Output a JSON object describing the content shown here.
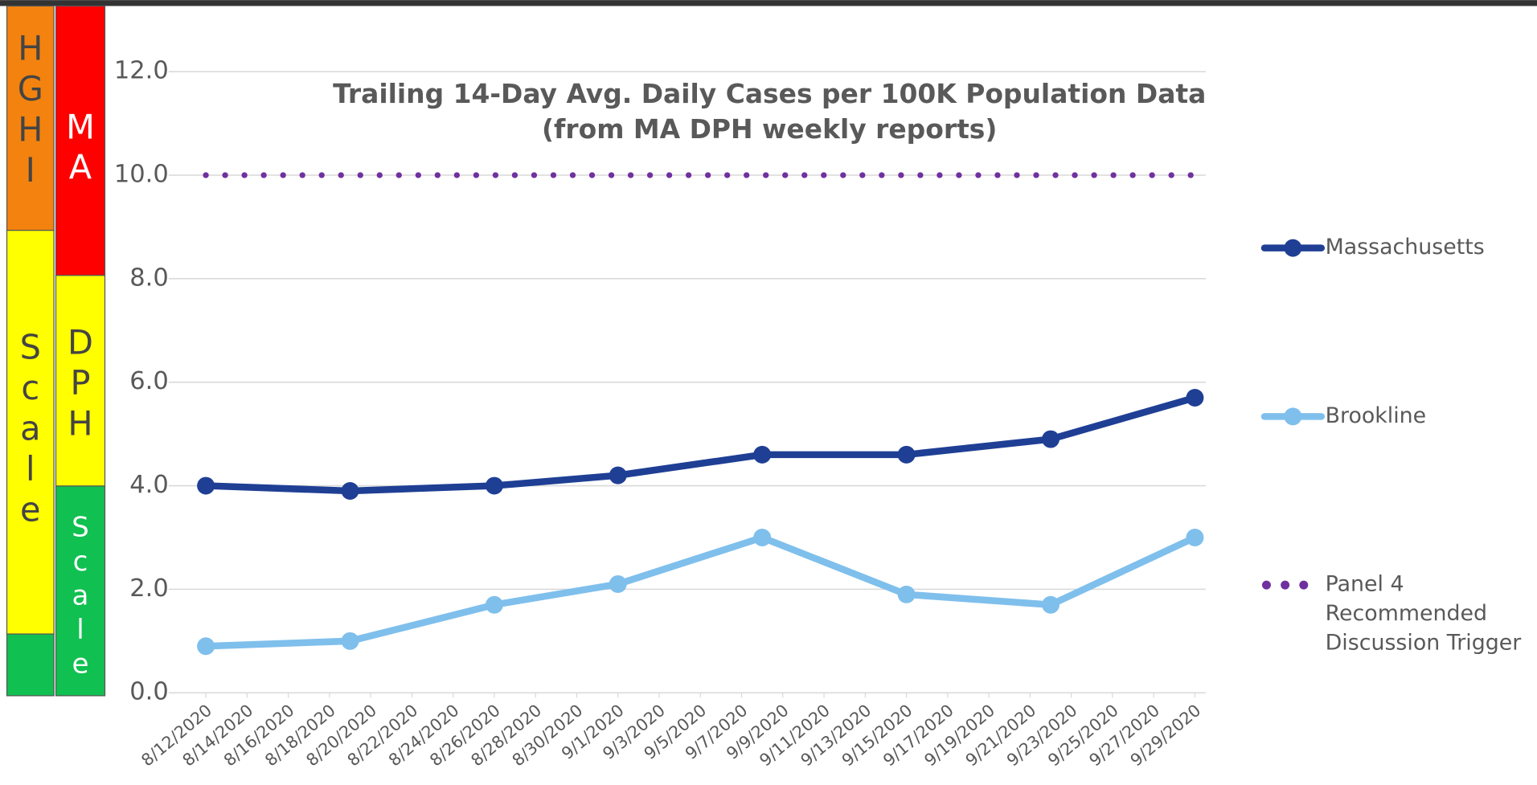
{
  "chart_data": {
    "type": "line",
    "title": "Trailing 14-Day Avg. Daily Cases per 100K Population Data",
    "subtitle": "(from MA DPH weekly reports)",
    "x": [
      "8/12/2020",
      "8/19/2020",
      "8/26/2020",
      "9/1/2020",
      "9/8/2020",
      "9/15/2020",
      "9/22/2020",
      "9/29/2020"
    ],
    "series": [
      {
        "name": "Massachusetts",
        "color": "#1f3f95",
        "style": "solid",
        "values": [
          4.0,
          3.9,
          4.0,
          4.2,
          4.6,
          4.6,
          4.9,
          5.7
        ]
      },
      {
        "name": "Brookline",
        "color": "#7fbfec",
        "style": "solid",
        "values": [
          0.9,
          1.0,
          1.7,
          2.1,
          3.0,
          1.9,
          1.7,
          3.0
        ]
      },
      {
        "name": "Panel 4 Recommended Discussion Trigger",
        "color": "#7030a0",
        "style": "dotted",
        "values": [
          10,
          10,
          10,
          10,
          10,
          10,
          10,
          10
        ]
      }
    ],
    "xlim": [
      "8/12/2020",
      "9/29/2020"
    ],
    "xticks": [
      "8/12/2020",
      "8/14/2020",
      "8/16/2020",
      "8/18/2020",
      "8/20/2020",
      "8/22/2020",
      "8/24/2020",
      "8/26/2020",
      "8/28/2020",
      "8/30/2020",
      "9/1/2020",
      "9/3/2020",
      "9/5/2020",
      "9/7/2020",
      "9/9/2020",
      "9/11/2020",
      "9/13/2020",
      "9/15/2020",
      "9/17/2020",
      "9/19/2020",
      "9/21/2020",
      "9/23/2020",
      "9/25/2020",
      "9/27/2020",
      "9/29/2020"
    ],
    "ylim": [
      0,
      12
    ],
    "yticks": [
      {
        "value": 0,
        "label": "0.0"
      },
      {
        "value": 2,
        "label": "2.0"
      },
      {
        "value": 4,
        "label": "4.0"
      },
      {
        "value": 6,
        "label": "6.0"
      },
      {
        "value": 8,
        "label": "8.0"
      },
      {
        "value": 10,
        "label": "10.0"
      },
      {
        "value": 12,
        "label": "12.0"
      }
    ],
    "grid": true,
    "legend": "right"
  },
  "side_scales": {
    "hghi": [
      "HGHI",
      "Scale"
    ],
    "ma_dph": [
      "MA",
      "DPH",
      "Scale"
    ]
  }
}
